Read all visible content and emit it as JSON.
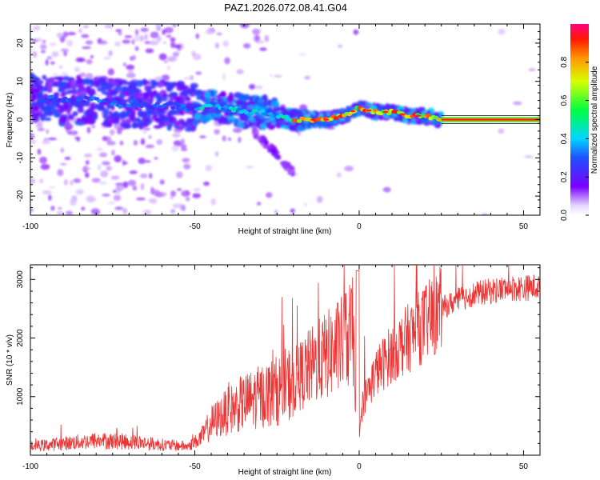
{
  "figure": {
    "title": "PAZ1.2026.072.08.41.G04"
  },
  "chart_data": [
    {
      "type": "heatmap",
      "xlabel": "Height of straight line (km)",
      "ylabel": "Frequency (Hz)",
      "xlim": [
        -100,
        55
      ],
      "ylim": [
        -25,
        25
      ],
      "xticks": [
        -100,
        -50,
        0,
        50
      ],
      "yticks": [
        -20,
        -10,
        0,
        10,
        20
      ],
      "colorbar": {
        "label": "Normalized spectral amplitude",
        "range": [
          0,
          1
        ],
        "ticks": [
          0.0,
          0.2,
          0.4,
          0.6,
          0.8
        ]
      },
      "ridge": {
        "description_points_x": [
          -100,
          -90,
          -80,
          -70,
          -60,
          -50,
          -45,
          -40,
          -35,
          -30,
          -25,
          -20,
          -15,
          -10,
          -5,
          0,
          5,
          10,
          15,
          20,
          25,
          55
        ],
        "description_points_y": [
          6,
          5,
          5,
          4,
          4,
          3,
          4,
          3,
          2,
          2,
          1,
          0,
          0,
          0,
          1,
          3,
          2,
          2,
          1,
          1,
          0,
          0
        ],
        "peak_amplitude_region_x": [
          -20,
          55
        ]
      }
    },
    {
      "type": "line",
      "xlabel": "Height of straight line (km)",
      "ylabel": "SNR (10 * v/v)",
      "xlim": [
        -100,
        55
      ],
      "ylim": [
        0,
        3250
      ],
      "xticks": [
        -100,
        -50,
        0,
        50
      ],
      "yticks": [
        1000,
        2000,
        3000
      ],
      "series": [
        {
          "name": "SNR",
          "color": "#ee3333",
          "trend_x": [
            -100,
            -90,
            -80,
            -70,
            -60,
            -52,
            -48,
            -45,
            -40,
            -35,
            -30,
            -25,
            -20,
            -15,
            -10,
            -5,
            -2,
            0,
            1,
            5,
            10,
            15,
            20,
            25,
            30,
            35,
            40,
            45,
            50,
            55
          ],
          "trend_y": [
            150,
            200,
            250,
            230,
            180,
            150,
            300,
            550,
            750,
            900,
            1000,
            1100,
            1250,
            1500,
            1700,
            1900,
            2100,
            200,
            900,
            1400,
            1750,
            2000,
            2250,
            2500,
            2650,
            2750,
            2800,
            2850,
            2850,
            2880
          ]
        }
      ]
    }
  ]
}
